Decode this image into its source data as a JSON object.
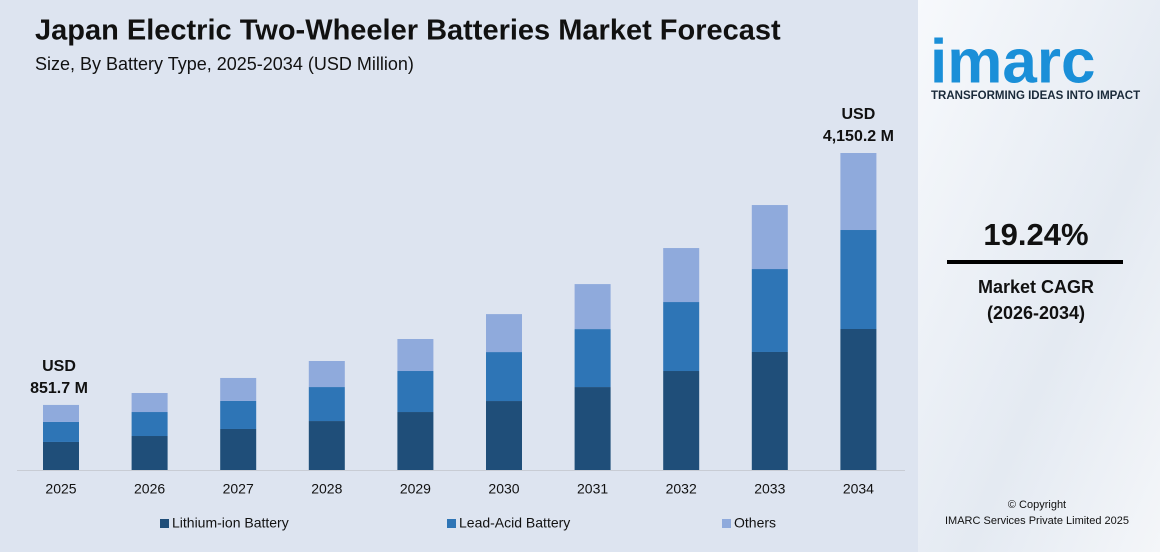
{
  "chart_data": {
    "type": "stacked-bar",
    "title": "Japan Electric Two-Wheeler Batteries Market Forecast",
    "subtitle": "Size, By Battery Type, 2025-2034 (USD Million)",
    "categories": [
      "2025",
      "2026",
      "2027",
      "2028",
      "2029",
      "2030",
      "2031",
      "2032",
      "2033",
      "2034"
    ],
    "series": [
      {
        "name": "Lithium-ion Battery",
        "color": "#1f4e79",
        "values": [
          367,
          445,
          537,
          641,
          759,
          903,
          1086,
          1296,
          1545,
          1846
        ]
      },
      {
        "name": "Lead-Acid Battery",
        "color": "#2e75b6",
        "values": [
          262,
          314,
          367,
          445,
          537,
          641,
          759,
          903,
          1086,
          1296
        ]
      },
      {
        "name": "Others",
        "color": "#8faadc",
        "values": [
          222.7,
          249,
          301,
          341,
          419,
          497,
          589,
          707,
          838,
          1008.2
        ]
      }
    ],
    "annotations": [
      {
        "x": "2025",
        "value": 851.7,
        "text": [
          "USD",
          "851.7  M"
        ]
      },
      {
        "x": "2034",
        "value": 4150.2,
        "text": [
          "USD",
          "4,150.2 M"
        ]
      }
    ]
  },
  "sidebar": {
    "logo": "imarc",
    "tagline": "TRANSFORMING IDEAS INTO IMPACT",
    "cagr": "19.24%",
    "cagr_label": "Market CAGR",
    "cagr_period": "(2026-2034)",
    "copyright": "© Copyright",
    "company": "IMARC Services Private Limited 2025"
  }
}
